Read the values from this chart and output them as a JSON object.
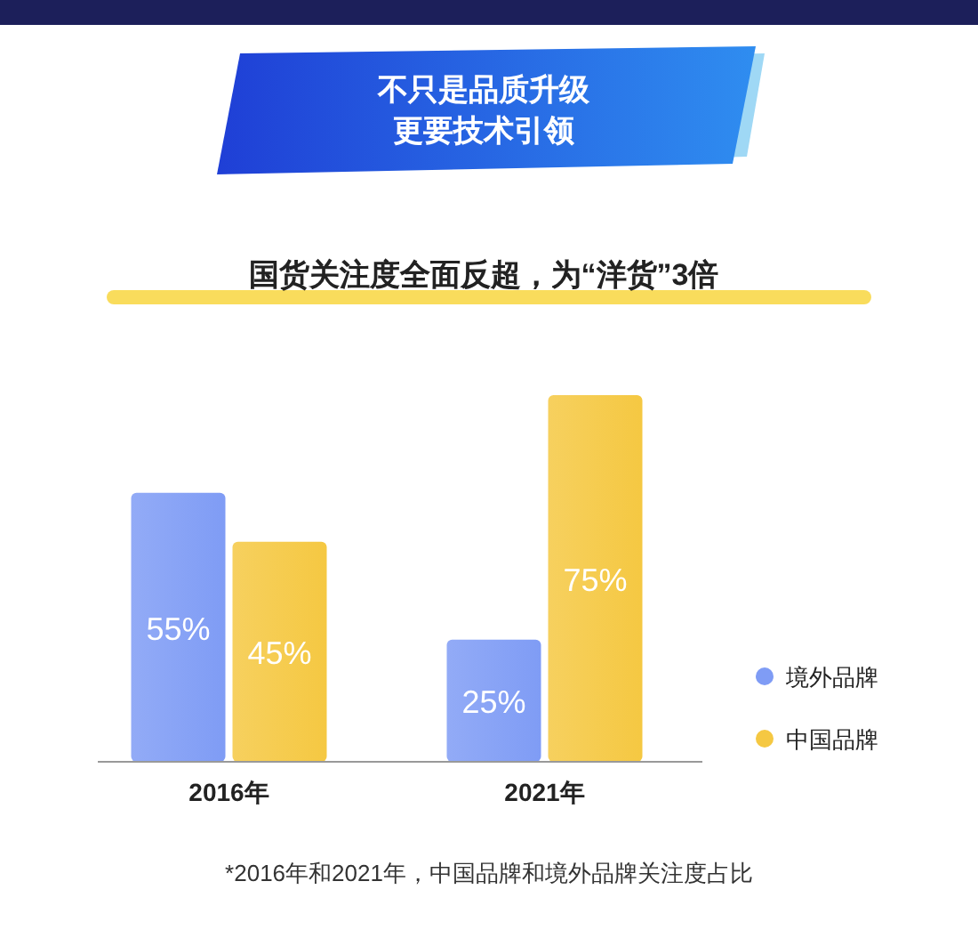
{
  "chart_data": {
    "type": "bar",
    "title": "不只是品质升级更要技术引领",
    "subtitle": "国货关注度全面反超，为“洋货”3倍",
    "categories": [
      "2016年",
      "2021年"
    ],
    "legend": "right",
    "annotations": [
      "*2016年和2021年，中国品牌和境外品牌关注度占比"
    ],
    "series": [
      {
        "name": "境外品牌",
        "color": "#7f9cf5",
        "values": [
          55,
          25
        ],
        "value_labels": [
          "55%",
          "25%"
        ]
      },
      {
        "name": "中国品牌",
        "color": "#f5c842",
        "values": [
          45,
          75
        ],
        "value_labels": [
          "45%",
          "75%"
        ]
      }
    ]
  }
}
